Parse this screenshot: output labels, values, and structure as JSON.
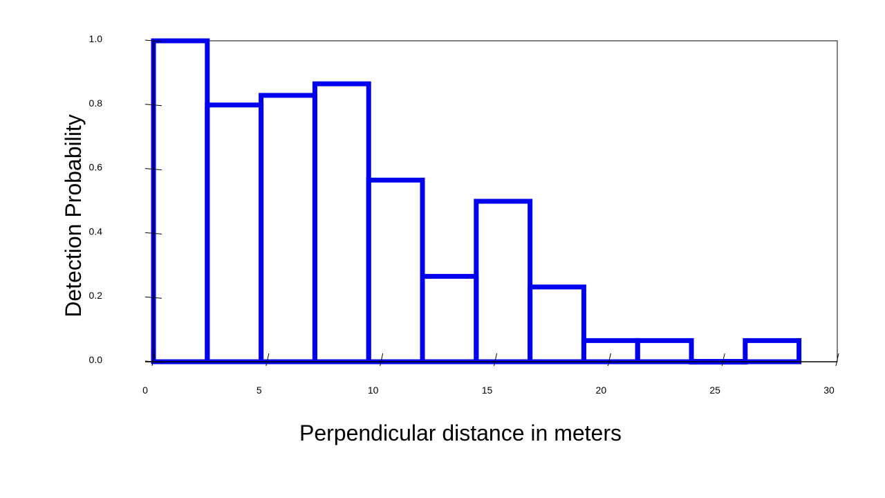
{
  "chart_data": {
    "type": "bar",
    "title": "",
    "xlabel": "Perpendicular distance in meters",
    "ylabel": "Detection Probability",
    "xlim": [
      0,
      30
    ],
    "ylim": [
      0,
      1.0
    ],
    "x_ticks": [
      "0",
      "5",
      "10",
      "15",
      "20",
      "25",
      "30"
    ],
    "y_ticks": [
      "0.0",
      "0.2",
      "0.4",
      "0.6",
      "0.8",
      "1.0"
    ],
    "bins": [
      {
        "start": 0.0,
        "end": 2.36,
        "value": 1.0
      },
      {
        "start": 2.36,
        "end": 4.72,
        "value": 0.8
      },
      {
        "start": 4.72,
        "end": 7.08,
        "value": 0.83
      },
      {
        "start": 7.08,
        "end": 9.44,
        "value": 0.866
      },
      {
        "start": 9.44,
        "end": 11.8,
        "value": 0.566
      },
      {
        "start": 11.8,
        "end": 14.16,
        "value": 0.266
      },
      {
        "start": 14.16,
        "end": 16.52,
        "value": 0.5
      },
      {
        "start": 16.52,
        "end": 18.88,
        "value": 0.233
      },
      {
        "start": 18.88,
        "end": 21.24,
        "value": 0.066
      },
      {
        "start": 21.24,
        "end": 23.6,
        "value": 0.066
      },
      {
        "start": 23.6,
        "end": 25.96,
        "value": 0.0
      },
      {
        "start": 25.96,
        "end": 28.32,
        "value": 0.066
      }
    ],
    "grid": false,
    "bar_style": "outline",
    "bar_color": "#0000ee"
  }
}
